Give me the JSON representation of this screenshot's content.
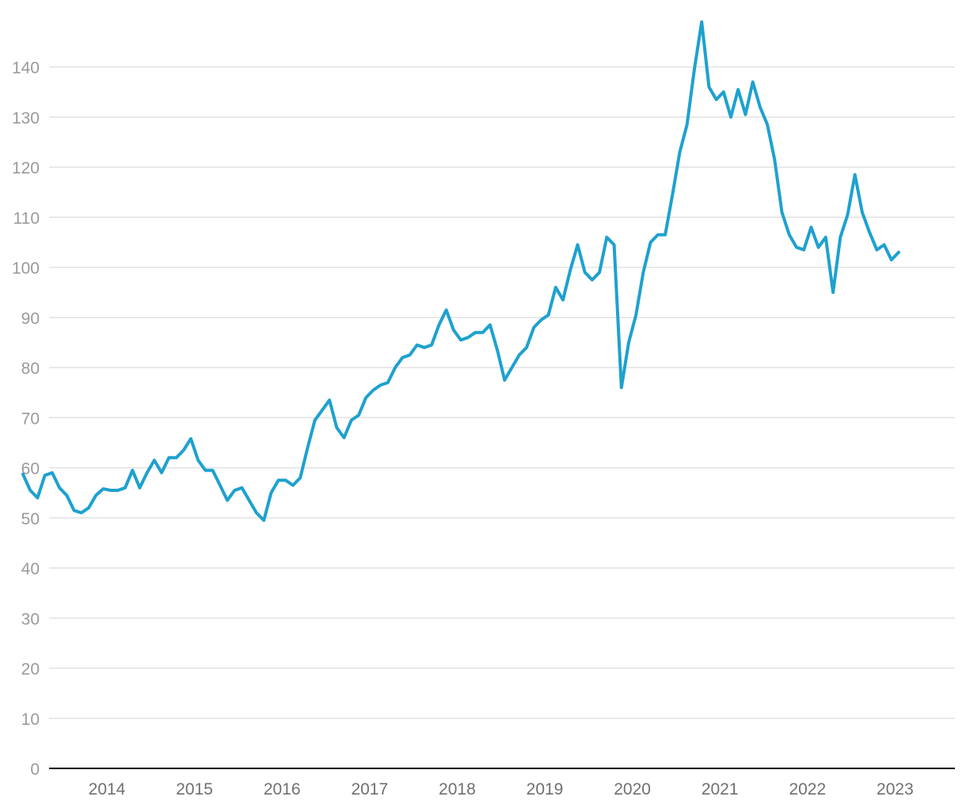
{
  "chart_data": {
    "type": "line",
    "title": "",
    "xlabel": "",
    "ylabel": "",
    "ylim": [
      0,
      150
    ],
    "yticks": [
      "0",
      "10",
      "20",
      "30",
      "40",
      "50",
      "60",
      "70",
      "80",
      "90",
      "100",
      "110",
      "120",
      "130",
      "140"
    ],
    "xticks": [
      "2014",
      "2015",
      "2016",
      "2017",
      "2018",
      "2019",
      "2020",
      "2021",
      "2022",
      "2023"
    ],
    "grid": true,
    "legend": "none",
    "color": "#1ea1cf",
    "series": [
      {
        "x": [
          "2013-07",
          "2013-08",
          "2013-09",
          "2013-10",
          "2013-11",
          "2013-12",
          "2014-01",
          "2014-02",
          "2014-03",
          "2014-04",
          "2014-05",
          "2014-06",
          "2014-07",
          "2014-08",
          "2014-09",
          "2014-10",
          "2014-11",
          "2014-12",
          "2015-01",
          "2015-02",
          "2015-03",
          "2015-04",
          "2015-05",
          "2015-06",
          "2015-07",
          "2015-08",
          "2015-09",
          "2015-10",
          "2015-11",
          "2015-12",
          "2016-01",
          "2016-02",
          "2016-03",
          "2016-04",
          "2016-05",
          "2016-06",
          "2016-07",
          "2016-08",
          "2016-09",
          "2016-10",
          "2016-11",
          "2016-12",
          "2017-01",
          "2017-02",
          "2017-03",
          "2017-04",
          "2017-05",
          "2017-06",
          "2017-07",
          "2017-08",
          "2017-09",
          "2017-10",
          "2017-11",
          "2017-12",
          "2018-01",
          "2018-02",
          "2018-03",
          "2018-04",
          "2018-05",
          "2018-06",
          "2018-07",
          "2018-08",
          "2018-09",
          "2018-10",
          "2018-11",
          "2018-12",
          "2019-01",
          "2019-02",
          "2019-03",
          "2019-04",
          "2019-05",
          "2019-06",
          "2019-07",
          "2019-08",
          "2019-09",
          "2019-10",
          "2019-11",
          "2019-12",
          "2020-01",
          "2020-02",
          "2020-03",
          "2020-04",
          "2020-05",
          "2020-06",
          "2020-07",
          "2020-08",
          "2020-09",
          "2020-10",
          "2020-11",
          "2020-12",
          "2021-01",
          "2021-02",
          "2021-03",
          "2021-04",
          "2021-05",
          "2021-06",
          "2021-07",
          "2021-08",
          "2021-09",
          "2021-10",
          "2021-11",
          "2021-12",
          "2022-01",
          "2022-02",
          "2022-03",
          "2022-04",
          "2022-05",
          "2022-06",
          "2022-07",
          "2022-08",
          "2022-09",
          "2022-10",
          "2022-11",
          "2022-12",
          "2023-01",
          "2023-02",
          "2023-03",
          "2023-04",
          "2023-05",
          "2023-06",
          "2023-07"
        ],
        "values": [
          58.7,
          55.5,
          54.0,
          58.5,
          59.0,
          56.0,
          54.5,
          51.5,
          51.0,
          52.0,
          54.5,
          55.8,
          55.5,
          55.5,
          56.0,
          59.5,
          56.0,
          59.0,
          61.5,
          59.0,
          62.0,
          62.0,
          63.5,
          65.8,
          61.5,
          59.5,
          59.5,
          56.5,
          53.5,
          55.5,
          56.0,
          53.5,
          51.0,
          49.5,
          55.0,
          57.5,
          57.5,
          56.5,
          58.0,
          64.0,
          69.5,
          71.5,
          73.5,
          68.0,
          66.0,
          69.5,
          70.5,
          74.0,
          75.5,
          76.5,
          77.0,
          80.0,
          82.0,
          82.5,
          84.5,
          84.0,
          84.5,
          88.5,
          91.5,
          87.5,
          85.5,
          86.0,
          87.0,
          87.0,
          88.5,
          83.5,
          77.5,
          80.0,
          82.5,
          84.0,
          88.0,
          89.5,
          90.5,
          96.0,
          93.5,
          99.5,
          104.5,
          99.0,
          97.5,
          99.0,
          106.0,
          104.5,
          76.0,
          85.0,
          90.5,
          99.0,
          105.0,
          106.5,
          106.5,
          114.5,
          123.0,
          128.5,
          139.5,
          149.0,
          136.0,
          133.5,
          135.0,
          130.0,
          135.5,
          130.5,
          137.0,
          132.0,
          128.5,
          121.5,
          111.0,
          106.5,
          104.0,
          103.5,
          108.0,
          104.0,
          106.0,
          95.0,
          106.0,
          110.5,
          118.5,
          111.0,
          107.0,
          103.5,
          104.5,
          101.5,
          103.0
        ]
      }
    ]
  }
}
